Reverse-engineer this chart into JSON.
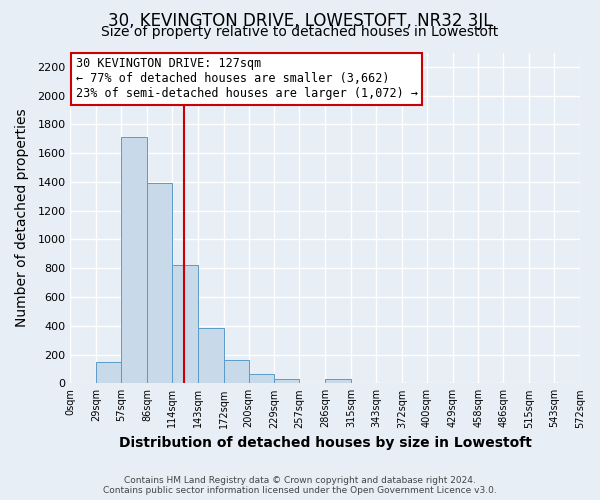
{
  "title": "30, KEVINGTON DRIVE, LOWESTOFT, NR32 3JL",
  "subtitle": "Size of property relative to detached houses in Lowestoft",
  "xlabel": "Distribution of detached houses by size in Lowestoft",
  "ylabel": "Number of detached properties",
  "bar_edges": [
    0,
    29,
    57,
    86,
    114,
    143,
    172,
    200,
    229,
    257,
    286,
    315,
    343,
    372,
    400,
    429,
    458,
    486,
    515,
    543,
    572
  ],
  "bar_heights": [
    0,
    145,
    1710,
    1390,
    825,
    385,
    165,
    65,
    30,
    5,
    30,
    0,
    0,
    0,
    0,
    0,
    0,
    0,
    0,
    0
  ],
  "bar_color": "#c8daea",
  "bar_edge_color": "#5a9bc8",
  "property_line_x": 127,
  "property_line_color": "#cc0000",
  "annotation_line1": "30 KEVINGTON DRIVE: 127sqm",
  "annotation_line2": "← 77% of detached houses are smaller (3,662)",
  "annotation_line3": "23% of semi-detached houses are larger (1,072) →",
  "annotation_box_color": "#ffffff",
  "annotation_box_edge_color": "#cc0000",
  "ylim": [
    0,
    2300
  ],
  "yticks": [
    0,
    200,
    400,
    600,
    800,
    1000,
    1200,
    1400,
    1600,
    1800,
    2000,
    2200
  ],
  "tick_labels": [
    "0sqm",
    "29sqm",
    "57sqm",
    "86sqm",
    "114sqm",
    "143sqm",
    "172sqm",
    "200sqm",
    "229sqm",
    "257sqm",
    "286sqm",
    "315sqm",
    "343sqm",
    "372sqm",
    "400sqm",
    "429sqm",
    "458sqm",
    "486sqm",
    "515sqm",
    "543sqm",
    "572sqm"
  ],
  "footer_line1": "Contains HM Land Registry data © Crown copyright and database right 2024.",
  "footer_line2": "Contains public sector information licensed under the Open Government Licence v3.0.",
  "background_color": "#e8eef5",
  "plot_bg_color": "#e8eef5",
  "grid_color": "#ffffff",
  "title_fontsize": 12,
  "subtitle_fontsize": 10,
  "label_fontsize": 10
}
